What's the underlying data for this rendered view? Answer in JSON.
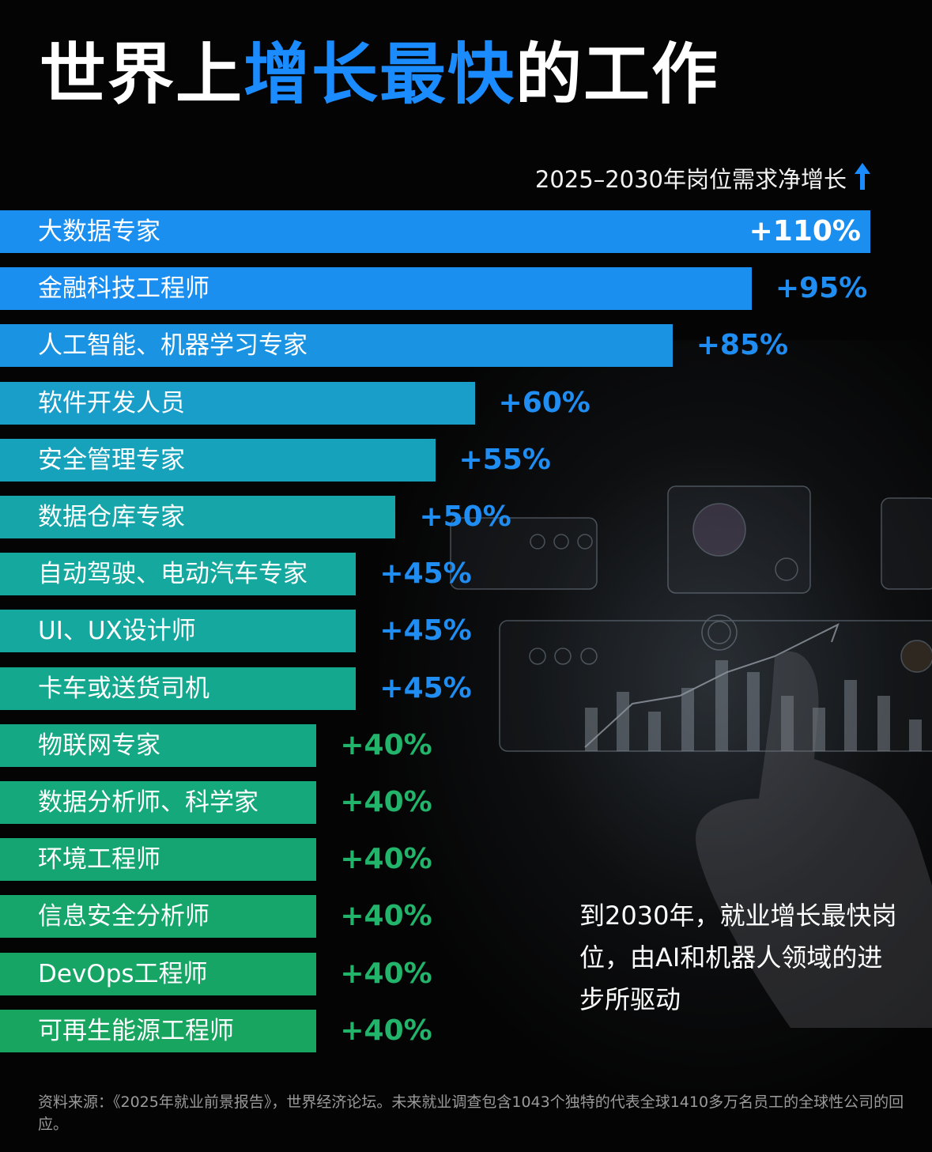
{
  "title": {
    "part1": "世界上",
    "highlight": "增长最快",
    "part2": "的工作"
  },
  "chart_data": {
    "type": "bar",
    "orientation": "horizontal",
    "subtitle": "2025–2030年岗位需求净增长",
    "unit": "%",
    "categories": [
      "大数据专家",
      "金融科技工程师",
      "人工智能、机器学习专家",
      "软件开发人员",
      "安全管理专家",
      "数据仓库专家",
      "自动驾驶、电动汽车专家",
      "UI、UX设计师",
      "卡车或送货司机",
      "物联网专家",
      "数据分析师、科学家",
      "环境工程师",
      "信息安全分析师",
      "DevOps工程师",
      "可再生能源工程师"
    ],
    "values": [
      110,
      95,
      85,
      60,
      55,
      50,
      45,
      45,
      45,
      40,
      40,
      40,
      40,
      40,
      40
    ],
    "value_labels": [
      "+110%",
      "+95%",
      "+85%",
      "+60%",
      "+55%",
      "+50%",
      "+45%",
      "+45%",
      "+45%",
      "+40%",
      "+40%",
      "+40%",
      "+40%",
      "+40%",
      "+40%"
    ],
    "colors": [
      "#1b8ff0",
      "#1b8ff0",
      "#1a94e2",
      "#199dc9",
      "#17a2bb",
      "#16a6aa",
      "#15a89e",
      "#15a89e",
      "#14a98f",
      "#14a884",
      "#14a87a",
      "#15a572",
      "#16a56b",
      "#17a565",
      "#17a55f"
    ],
    "value_colors": [
      "#ffffff",
      "#1f8df2",
      "#1f8df2",
      "#1f8df2",
      "#1f8df2",
      "#1f8df2",
      "#1f8df2",
      "#1f8df2",
      "#1f8df2",
      "#22b46a",
      "#22b46a",
      "#22b46a",
      "#22b46a",
      "#22b46a",
      "#22b46a"
    ],
    "grid": false,
    "legend": "none"
  },
  "note": "到2030年，就业增长最快岗位，由AI和机器人领域的进步所驱动",
  "source": "资料来源：《2025年就业前景报告》，世界经济论坛。未来就业调查包含1043个独特的代表全球1410多万名员工的全球性公司的回应。"
}
